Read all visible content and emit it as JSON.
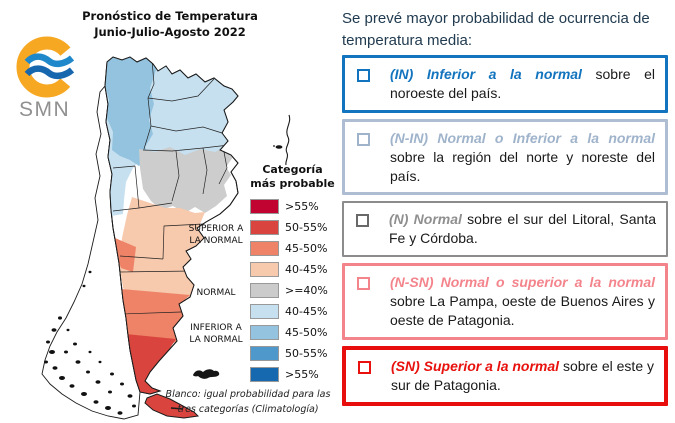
{
  "map_panel": {
    "title_line1": "Pronóstico de Temperatura",
    "title_line2": "Junio-Julio-Agosto 2022",
    "logo": {
      "text": "SMN",
      "ring_color": "#F7A823",
      "wave_color_top": "#1E88CA",
      "wave_color_bottom": "#1767AE"
    },
    "legend": {
      "title": "Categoría más probable",
      "items": [
        {
          "label": ">55%",
          "color": "#C00331",
          "category": "superior a la normal"
        },
        {
          "label": "50-55%",
          "color": "#D9453E",
          "category": "superior a la normal"
        },
        {
          "label": "45-50%",
          "color": "#EE8367",
          "category": "superior a la normal"
        },
        {
          "label": "40-45%",
          "color": "#F7C9AD",
          "category": "superior a la normal"
        },
        {
          "label": ">=40%",
          "color": "#CBCBCB",
          "category": "normal"
        },
        {
          "label": "40-45%",
          "color": "#C6E0F0",
          "category": "inferior a la normal"
        },
        {
          "label": "45-50%",
          "color": "#94C3DF",
          "category": "inferior a la normal"
        },
        {
          "label": "50-55%",
          "color": "#4F98CB",
          "category": "inferior a la normal"
        },
        {
          "label": ">55%",
          "color": "#1668AF",
          "category": "inferior a la normal"
        }
      ],
      "group_labels": [
        "SUPERIOR A LA NORMAL",
        "NORMAL",
        "INFERIOR A LA NORMAL"
      ]
    },
    "footnote": "Blanco: igual probabilidad para las tres categorías (Climatología)",
    "map": {
      "colors": {
        "light_blue": "#C6E0F0",
        "medium_blue": "#94C3DF",
        "gray": "#CDCDCD",
        "light_orange": "#F7C9AD",
        "orange": "#EE8367",
        "red": "#D9453E",
        "land": "#FFFFFF",
        "outline": "#1B1B1B"
      }
    }
  },
  "forecast_panel": {
    "intro": "Se prevé mayor probabilidad de ocurrencia de temperatura media:",
    "items": [
      {
        "id": "IN",
        "lead": "(IN) Inferior a la normal",
        "body": " sobre el noroeste del país.",
        "accent": "#1274BE",
        "border": "#1274BE",
        "border_w": 3
      },
      {
        "id": "N-IN",
        "lead": "(N-IN) Normal o Inferior a la normal",
        "body": " sobre la región del norte y noreste del país.",
        "accent": "#9FB3CB",
        "border": "#AEBDD1",
        "border_w": 3
      },
      {
        "id": "N",
        "lead": "(N) Normal",
        "body": " sobre el sur del Litoral, Santa Fe y Córdoba.",
        "accent": "#8F8F8F",
        "border": "#8C8C8C",
        "border_w": 2,
        "bullet": "#696969"
      },
      {
        "id": "N-SN",
        "lead": "(N-SN) Normal o superior a la normal",
        "body": " sobre La Pampa, oeste de Buenos Aires y oeste de Patagonia.",
        "accent": "#F4848C",
        "border": "#F4848C",
        "border_w": 3
      },
      {
        "id": "SN",
        "lead": "(SN) Superior a la normal",
        "body": " sobre el este y sur de Patagonia.",
        "accent": "#E8110D",
        "border": "#E90E0E",
        "border_w": 4
      }
    ]
  }
}
